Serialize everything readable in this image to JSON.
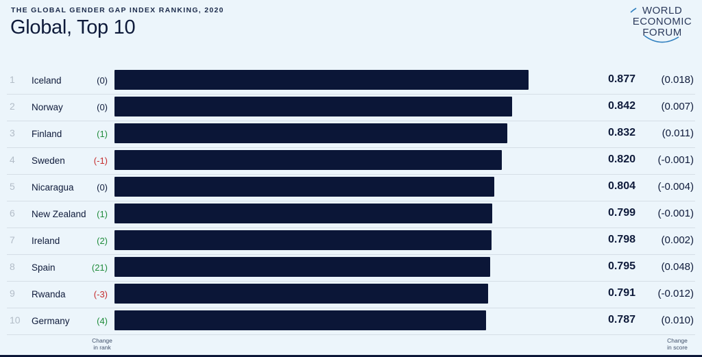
{
  "header": {
    "kicker": "THE GLOBAL GENDER GAP INDEX RANKING, 2020",
    "title": "Global, Top 10"
  },
  "logo": {
    "line1": "WORLD",
    "line2": "ECONOMIC",
    "line3": "FORUM"
  },
  "colors": {
    "bar": "#0b1637",
    "positive_change": "#1e8b3a",
    "negative_change": "#c52a2a",
    "neutral_change": "#0e1a3a",
    "rank": "#b2bcc7"
  },
  "chart_data": {
    "type": "bar",
    "orientation": "horizontal",
    "title": "Global, Top 10",
    "xlim": [
      0,
      1
    ],
    "rows": [
      {
        "rank": "1",
        "country": "Iceland",
        "rank_change": "(0)",
        "rank_change_sign": 0,
        "score": 0.877,
        "score_label": "0.877",
        "score_change": "(0.018)"
      },
      {
        "rank": "2",
        "country": "Norway",
        "rank_change": "(0)",
        "rank_change_sign": 0,
        "score": 0.842,
        "score_label": "0.842",
        "score_change": "(0.007)"
      },
      {
        "rank": "3",
        "country": "Finland",
        "rank_change": "(1)",
        "rank_change_sign": 1,
        "score": 0.832,
        "score_label": "0.832",
        "score_change": "(0.011)"
      },
      {
        "rank": "4",
        "country": "Sweden",
        "rank_change": "(-1)",
        "rank_change_sign": -1,
        "score": 0.82,
        "score_label": "0.820",
        "score_change": "(-0.001)"
      },
      {
        "rank": "5",
        "country": "Nicaragua",
        "rank_change": "(0)",
        "rank_change_sign": 0,
        "score": 0.804,
        "score_label": "0.804",
        "score_change": "(-0.004)"
      },
      {
        "rank": "6",
        "country": "New Zealand",
        "rank_change": "(1)",
        "rank_change_sign": 1,
        "score": 0.799,
        "score_label": "0.799",
        "score_change": "(-0.001)"
      },
      {
        "rank": "7",
        "country": "Ireland",
        "rank_change": "(2)",
        "rank_change_sign": 1,
        "score": 0.798,
        "score_label": "0.798",
        "score_change": "(0.002)"
      },
      {
        "rank": "8",
        "country": "Spain",
        "rank_change": "(21)",
        "rank_change_sign": 1,
        "score": 0.795,
        "score_label": "0.795",
        "score_change": "(0.048)"
      },
      {
        "rank": "9",
        "country": "Rwanda",
        "rank_change": "(-3)",
        "rank_change_sign": -1,
        "score": 0.791,
        "score_label": "0.791",
        "score_change": "(-0.012)"
      },
      {
        "rank": "10",
        "country": "Germany",
        "rank_change": "(4)",
        "rank_change_sign": 1,
        "score": 0.787,
        "score_label": "0.787",
        "score_change": "(0.010)"
      }
    ]
  },
  "footer": {
    "change_in_rank": [
      "Change",
      "in rank"
    ],
    "change_in_score": [
      "Change",
      "in score"
    ]
  }
}
